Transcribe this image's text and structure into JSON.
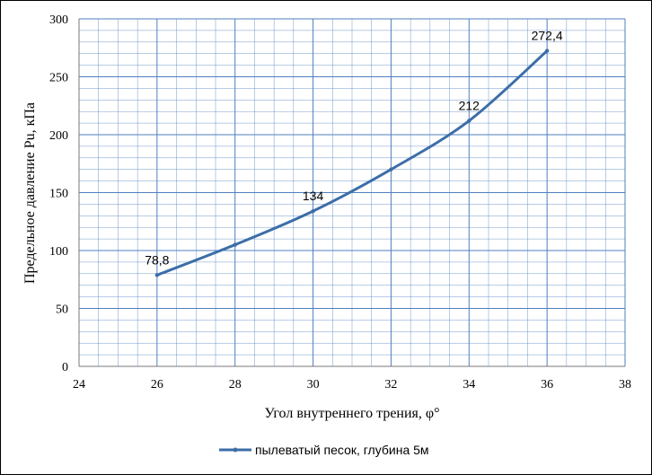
{
  "chart_data": {
    "type": "line",
    "xlabel": "Угол внутреннего трения, φ°",
    "ylabel": "Предельное давление Pu, кПа",
    "xlim": [
      24,
      38
    ],
    "ylim": [
      0,
      300
    ],
    "xticks": [
      24,
      26,
      28,
      30,
      32,
      34,
      36,
      38
    ],
    "yticks": [
      0,
      50,
      100,
      150,
      200,
      250,
      300
    ],
    "xtick_labels": [
      "24",
      "26",
      "28",
      "30",
      "32",
      "34",
      "36",
      "38"
    ],
    "ytick_labels": [
      "0",
      "50",
      "100",
      "150",
      "200",
      "250",
      "300"
    ],
    "grid": true,
    "legend_position": "bottom",
    "series": [
      {
        "name": "пылеватый песок, глубина 5м",
        "color": "#3c6ea8",
        "x": [
          26,
          28,
          30,
          32,
          34,
          36
        ],
        "y": [
          78.8,
          105,
          134,
          170,
          212,
          272.4
        ]
      }
    ],
    "data_labels": [
      {
        "x": 26,
        "y": 78.8,
        "text": "78,8"
      },
      {
        "x": 30,
        "y": 134,
        "text": "134"
      },
      {
        "x": 34,
        "y": 212,
        "text": "212"
      },
      {
        "x": 36,
        "y": 272.4,
        "text": "272,4"
      }
    ]
  }
}
